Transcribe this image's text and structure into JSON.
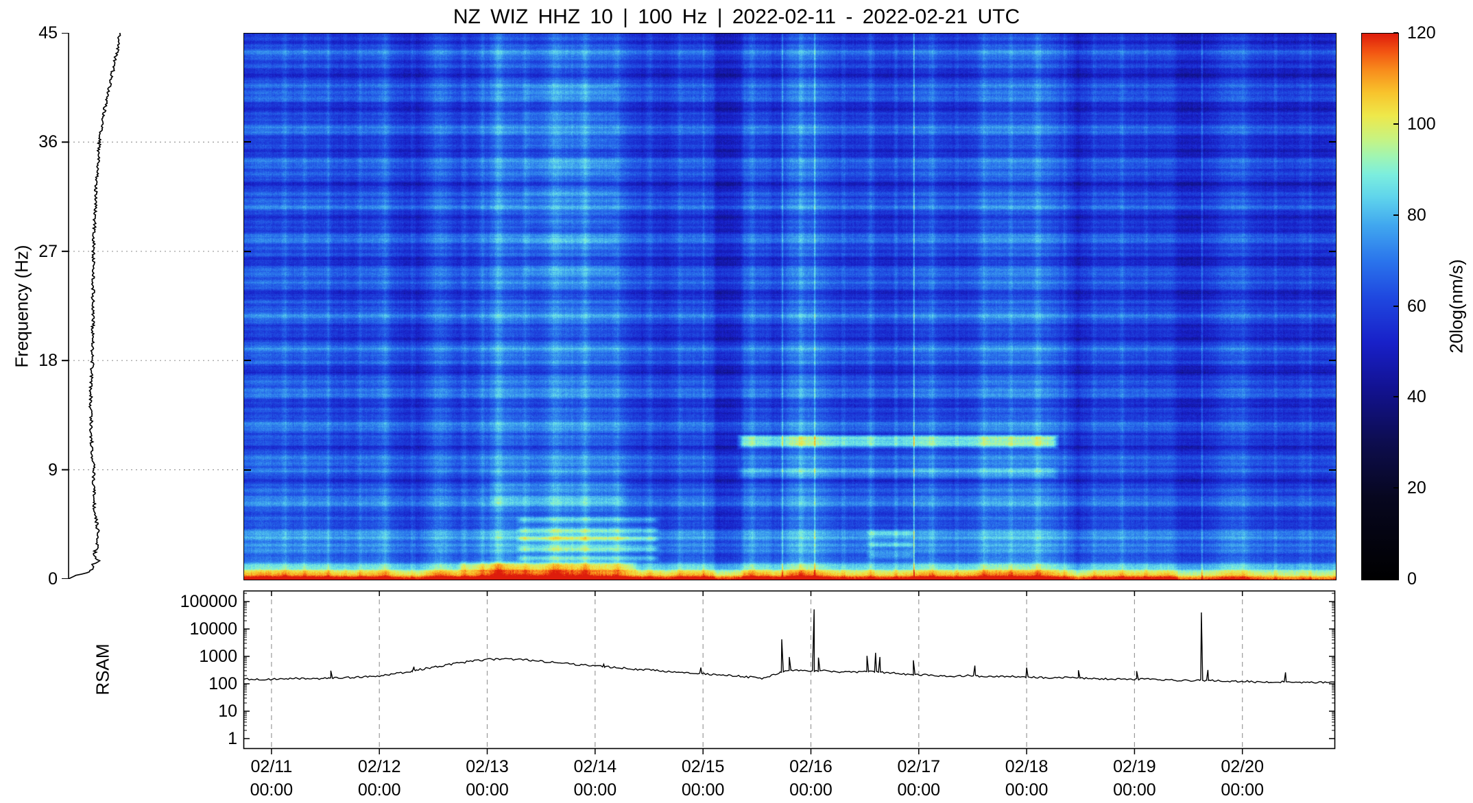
{
  "title": "NZ WIZ HHZ 10 | 100 Hz | 2022-02-11 - 2022-02-21 UTC",
  "spectrogram": {
    "ylabel": "Frequency  (Hz)",
    "freq_ticks": [
      0,
      9,
      18,
      27,
      36,
      45
    ],
    "gridline_freqs": [
      9,
      18,
      27,
      36
    ]
  },
  "colorbar": {
    "label": "20log(nm/s)",
    "ticks": [
      0,
      20,
      40,
      60,
      80,
      100,
      120
    ]
  },
  "rsam": {
    "label": "RSAM",
    "yticks": [
      1,
      10,
      100,
      1000,
      10000,
      100000
    ]
  },
  "xaxis": {
    "days": [
      {
        "date": "02/11",
        "time": "00:00",
        "t": 0
      },
      {
        "date": "02/12",
        "time": "00:00",
        "t": 1
      },
      {
        "date": "02/13",
        "time": "00:00",
        "t": 2
      },
      {
        "date": "02/14",
        "time": "00:00",
        "t": 3
      },
      {
        "date": "02/15",
        "time": "00:00",
        "t": 4
      },
      {
        "date": "02/16",
        "time": "00:00",
        "t": 5
      },
      {
        "date": "02/17",
        "time": "00:00",
        "t": 6
      },
      {
        "date": "02/18",
        "time": "00:00",
        "t": 7
      },
      {
        "date": "02/19",
        "time": "00:00",
        "t": 8
      },
      {
        "date": "02/20",
        "time": "00:00",
        "t": 9
      }
    ]
  },
  "chart_data": [
    {
      "type": "heatmap",
      "name": "spectrogram",
      "station": "NZ WIZ HHZ 10",
      "sample_rate": "100 Hz",
      "time_span_utc": "2022-02-11 - 2022-02-21",
      "x_range_days_from_02_11": [
        -0.26,
        9.86
      ],
      "y_range_hz": [
        0,
        45
      ],
      "value_range": [
        0,
        120
      ],
      "value_units": "20log(nm/s)",
      "seed": 1337,
      "base_level": 64,
      "freq_tilt": -0.06,
      "row_jitter": 2.0,
      "pixel_noise": 7.0,
      "banding": [
        [
          2.05,
          5.5,
          0.8
        ],
        [
          4.9,
          3.5,
          2.2
        ],
        [
          11.3,
          2.5,
          0.6
        ]
      ],
      "time_noise": [
        [
          2.9,
          3.5,
          0.5
        ],
        [
          6.3,
          2.5,
          1.7
        ],
        [
          11.1,
          1.8,
          3.3
        ]
      ],
      "low_freq_hot_band": {
        "amplitude": 36,
        "sigma_hz": 0.82,
        "bulge": {
          "t": 2.5,
          "w": 1.0,
          "a": 6
        },
        "cool_after_t": 8.4,
        "cool_a": -5
      },
      "stripes": [
        [
          0.12,
          0.03,
          6
        ],
        [
          0.3,
          0.02,
          5
        ],
        [
          0.52,
          0.025,
          7
        ],
        [
          0.68,
          0.015,
          4
        ],
        [
          0.82,
          0.02,
          5
        ],
        [
          1.05,
          0.03,
          6
        ],
        [
          1.3,
          0.02,
          5
        ],
        [
          1.55,
          0.12,
          10
        ],
        [
          1.78,
          0.03,
          6
        ],
        [
          1.95,
          0.02,
          5
        ],
        [
          2.1,
          0.04,
          7
        ],
        [
          2.35,
          0.03,
          6
        ],
        [
          2.62,
          0.05,
          6
        ],
        [
          2.9,
          0.04,
          7
        ],
        [
          3.2,
          0.03,
          6
        ],
        [
          3.5,
          0.04,
          7
        ],
        [
          3.78,
          0.02,
          5
        ],
        [
          4.0,
          0.015,
          5
        ],
        [
          4.45,
          0.02,
          6
        ],
        [
          4.73,
          0.008,
          15
        ],
        [
          4.9,
          0.02,
          5
        ],
        [
          5.03,
          0.006,
          17
        ],
        [
          5.3,
          0.02,
          5
        ],
        [
          5.55,
          0.03,
          7
        ],
        [
          5.78,
          0.02,
          6
        ],
        [
          5.95,
          0.004,
          30
        ],
        [
          6.12,
          0.03,
          5
        ],
        [
          6.35,
          0.02,
          5
        ],
        [
          6.6,
          0.03,
          6
        ],
        [
          6.85,
          0.02,
          5
        ],
        [
          7.1,
          0.03,
          6
        ],
        [
          7.35,
          0.02,
          5
        ],
        [
          7.62,
          0.03,
          5
        ],
        [
          7.88,
          0.02,
          5
        ],
        [
          8.1,
          0.02,
          5
        ],
        [
          8.62,
          0.006,
          16
        ],
        [
          9.0,
          0.02,
          4
        ],
        [
          9.3,
          0.02,
          5
        ],
        [
          9.62,
          0.02,
          4
        ]
      ],
      "sections": [
        [
          -0.26,
          1.0,
          -2
        ],
        [
          2.0,
          3.65,
          3
        ],
        [
          4.3,
          7.3,
          1
        ],
        [
          8.35,
          9.55,
          -6
        ],
        [
          9.55,
          9.86,
          -3
        ]
      ],
      "dark_columns": [
        [
          4.08,
          4.38,
          -9
        ],
        [
          4.6,
          4.78,
          -5
        ],
        [
          7.42,
          7.52,
          -4
        ]
      ],
      "patches": [
        [
          2.25,
          3.6,
          1.3,
          5.5,
          15,
          8
        ],
        [
          2.0,
          3.3,
          5.5,
          9.0,
          6,
          5
        ],
        [
          4.3,
          7.3,
          10.7,
          12.0,
          26,
          0
        ],
        [
          4.3,
          7.3,
          8.2,
          9.4,
          9,
          0
        ],
        [
          5.5,
          5.97,
          1.3,
          4.6,
          13,
          7
        ],
        [
          2.3,
          3.2,
          24,
          41,
          5,
          3
        ],
        [
          1.7,
          3.4,
          0.55,
          1.6,
          10,
          0
        ]
      ],
      "colormap": [
        [
          0,
          "#000000"
        ],
        [
          18,
          "#07071f"
        ],
        [
          30,
          "#0d0d4e"
        ],
        [
          42,
          "#121291"
        ],
        [
          52,
          "#1820c8"
        ],
        [
          62,
          "#1f48e0"
        ],
        [
          70,
          "#2a74ec"
        ],
        [
          78,
          "#41a8ef"
        ],
        [
          84,
          "#5fd4ec"
        ],
        [
          89,
          "#7ceede"
        ],
        [
          93,
          "#a0f5b2"
        ],
        [
          97,
          "#c8f380"
        ],
        [
          102,
          "#eee84a"
        ],
        [
          107,
          "#f8c32c"
        ],
        [
          112,
          "#f88c1c"
        ],
        [
          116,
          "#f25412"
        ],
        [
          120,
          "#dd1c0c"
        ]
      ]
    },
    {
      "type": "line",
      "name": "mean-spectrum-profile",
      "ylabel": "Frequency  (Hz)",
      "step_hz": 0.1,
      "jitter": 0.018,
      "points_f_amp": [
        [
          0,
          0.005
        ],
        [
          0.1,
          0.01
        ],
        [
          0.2,
          0.03
        ],
        [
          0.3,
          0.05
        ],
        [
          0.4,
          0.075
        ],
        [
          0.5,
          0.1
        ],
        [
          0.7,
          0.13
        ],
        [
          0.9,
          0.145
        ],
        [
          1.1,
          0.135
        ],
        [
          1.3,
          0.15
        ],
        [
          1.5,
          0.175
        ],
        [
          1.7,
          0.165
        ],
        [
          2.0,
          0.15
        ],
        [
          2.3,
          0.155
        ],
        [
          2.6,
          0.165
        ],
        [
          3.0,
          0.17
        ],
        [
          3.5,
          0.175
        ],
        [
          4.0,
          0.17
        ],
        [
          4.5,
          0.165
        ],
        [
          5.0,
          0.16
        ],
        [
          5.5,
          0.155
        ],
        [
          6.0,
          0.15
        ],
        [
          6.5,
          0.15
        ],
        [
          7.0,
          0.15
        ],
        [
          7.5,
          0.148
        ],
        [
          8.0,
          0.145
        ],
        [
          8.5,
          0.147
        ],
        [
          9.0,
          0.15
        ],
        [
          9.5,
          0.145
        ],
        [
          10,
          0.14
        ],
        [
          11,
          0.135
        ],
        [
          12,
          0.13
        ],
        [
          13,
          0.132
        ],
        [
          14,
          0.128
        ],
        [
          15,
          0.13
        ],
        [
          16,
          0.132
        ],
        [
          17,
          0.135
        ],
        [
          18,
          0.14
        ],
        [
          19,
          0.138
        ],
        [
          20,
          0.14
        ],
        [
          21,
          0.142
        ],
        [
          22,
          0.14
        ],
        [
          23,
          0.142
        ],
        [
          24,
          0.143
        ],
        [
          25,
          0.144
        ],
        [
          26,
          0.145
        ],
        [
          27,
          0.145
        ],
        [
          28,
          0.148
        ],
        [
          29,
          0.15
        ],
        [
          30,
          0.155
        ],
        [
          31,
          0.158
        ],
        [
          32,
          0.16
        ],
        [
          33,
          0.165
        ],
        [
          34,
          0.17
        ],
        [
          35,
          0.175
        ],
        [
          36,
          0.18
        ],
        [
          37,
          0.19
        ],
        [
          38,
          0.2
        ],
        [
          39,
          0.215
        ],
        [
          40,
          0.23
        ],
        [
          41,
          0.245
        ],
        [
          42,
          0.26
        ],
        [
          43,
          0.275
        ],
        [
          44,
          0.29
        ],
        [
          45,
          0.3
        ]
      ]
    },
    {
      "type": "line",
      "name": "RSAM",
      "yscale": "log",
      "y_range": [
        1,
        100000
      ],
      "sample_step_days": 0.018,
      "jitter_log": 0.07,
      "baseline_t_value": [
        [
          -0.26,
          150
        ],
        [
          -0.1,
          145
        ],
        [
          0.05,
          150
        ],
        [
          0.2,
          158
        ],
        [
          0.35,
          150
        ],
        [
          0.5,
          160
        ],
        [
          0.65,
          165
        ],
        [
          0.8,
          172
        ],
        [
          0.95,
          185
        ],
        [
          1.1,
          215
        ],
        [
          1.25,
          265
        ],
        [
          1.4,
          340
        ],
        [
          1.55,
          430
        ],
        [
          1.7,
          540
        ],
        [
          1.85,
          660
        ],
        [
          2.0,
          760
        ],
        [
          2.1,
          810
        ],
        [
          2.2,
          800
        ],
        [
          2.35,
          745
        ],
        [
          2.5,
          670
        ],
        [
          2.65,
          590
        ],
        [
          2.8,
          520
        ],
        [
          2.95,
          460
        ],
        [
          3.1,
          420
        ],
        [
          3.25,
          380
        ],
        [
          3.4,
          335
        ],
        [
          3.55,
          305
        ],
        [
          3.7,
          275
        ],
        [
          3.85,
          258
        ],
        [
          4.0,
          232
        ],
        [
          4.15,
          210
        ],
        [
          4.3,
          196
        ],
        [
          4.45,
          172
        ],
        [
          4.55,
          148
        ],
        [
          4.65,
          215
        ],
        [
          4.75,
          285
        ],
        [
          4.85,
          318
        ],
        [
          4.95,
          308
        ],
        [
          5.1,
          298
        ],
        [
          5.25,
          278
        ],
        [
          5.4,
          258
        ],
        [
          5.55,
          288
        ],
        [
          5.7,
          255
        ],
        [
          5.85,
          228
        ],
        [
          6.0,
          218
        ],
        [
          6.15,
          200
        ],
        [
          6.3,
          190
        ],
        [
          6.45,
          198
        ],
        [
          6.6,
          188
        ],
        [
          6.75,
          180
        ],
        [
          6.9,
          184
        ],
        [
          7.05,
          174
        ],
        [
          7.2,
          165
        ],
        [
          7.35,
          170
        ],
        [
          7.5,
          160
        ],
        [
          7.65,
          154
        ],
        [
          7.8,
          150
        ],
        [
          7.95,
          146
        ],
        [
          8.1,
          150
        ],
        [
          8.25,
          140
        ],
        [
          8.4,
          134
        ],
        [
          8.55,
          128
        ],
        [
          8.7,
          138
        ],
        [
          8.85,
          120
        ],
        [
          9.0,
          124
        ],
        [
          9.15,
          114
        ],
        [
          9.3,
          120
        ],
        [
          9.45,
          114
        ],
        [
          9.6,
          110
        ],
        [
          9.75,
          114
        ],
        [
          9.86,
          112
        ]
      ],
      "spikes_t_value": [
        [
          0.55,
          300
        ],
        [
          1.32,
          420
        ],
        [
          3.08,
          520
        ],
        [
          3.98,
          390
        ],
        [
          4.73,
          4200
        ],
        [
          4.8,
          950
        ],
        [
          5.03,
          52000
        ],
        [
          5.07,
          900
        ],
        [
          5.52,
          1050
        ],
        [
          5.6,
          1350
        ],
        [
          5.64,
          950
        ],
        [
          5.95,
          720
        ],
        [
          6.52,
          460
        ],
        [
          7.0,
          390
        ],
        [
          7.48,
          310
        ],
        [
          8.02,
          290
        ],
        [
          8.62,
          40000
        ],
        [
          8.68,
          320
        ],
        [
          9.4,
          260
        ]
      ]
    }
  ]
}
